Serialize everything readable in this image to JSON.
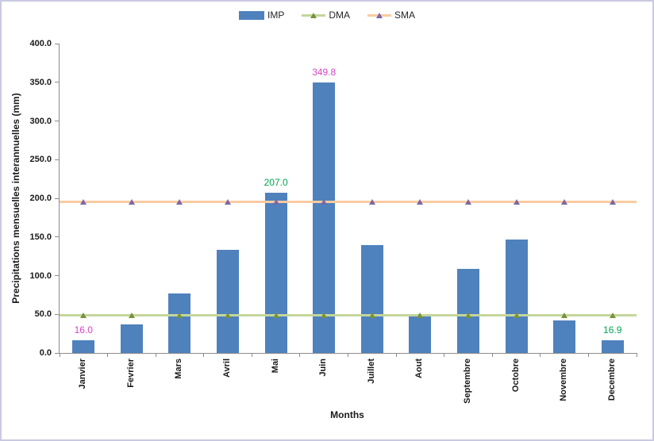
{
  "legend": {
    "items": [
      {
        "label": "IMP",
        "type": "bar"
      },
      {
        "label": "DMA",
        "type": "line"
      },
      {
        "label": "SMA",
        "type": "line"
      }
    ],
    "position": "top-center"
  },
  "chart_data": {
    "type": "bar",
    "title": "",
    "xlabel": "Months",
    "ylabel": "Precipitations mensuelles interannuelles (mm)",
    "categories": [
      "Janvier",
      "Fevrier",
      "Mars",
      "Avril",
      "Mai",
      "Juin",
      "Juillet",
      "Aout",
      "Septembre",
      "Octobre",
      "Novembre",
      "Decembre"
    ],
    "series": [
      {
        "name": "IMP",
        "type": "bar",
        "color": "#4F81BD",
        "values": [
          16.0,
          37,
          77,
          133,
          207.0,
          349.8,
          139,
          47,
          109,
          147,
          42,
          16.9
        ]
      },
      {
        "name": "DMA",
        "type": "line",
        "color": "#C3D69B",
        "marker_color": "#77933C",
        "values": [
          48.5,
          48.5,
          48.5,
          48.5,
          48.5,
          48.5,
          48.5,
          48.5,
          48.5,
          48.5,
          48.5,
          48.5
        ]
      },
      {
        "name": "SMA",
        "type": "line",
        "color": "#FACBA0",
        "marker_color": "#7A68A6",
        "values": [
          195,
          195,
          195,
          195,
          195,
          195,
          195,
          195,
          195,
          195,
          195,
          195
        ]
      }
    ],
    "point_labels": [
      {
        "series": "IMP",
        "index": 0,
        "text": "16.0",
        "color": "#D546C9"
      },
      {
        "series": "IMP",
        "index": 4,
        "text": "207.0",
        "color": "#00A551"
      },
      {
        "series": "IMP",
        "index": 5,
        "text": "349.8",
        "color": "#D546C9"
      },
      {
        "series": "IMP",
        "index": 11,
        "text": "16.9",
        "color": "#00A551"
      }
    ],
    "ylim": [
      0,
      400
    ],
    "ytick_step": 50,
    "ytick_labels": [
      "0.0",
      "50.0",
      "100.0",
      "150.0",
      "200.0",
      "250.0",
      "300.0",
      "350.0",
      "400.0"
    ],
    "grid": false,
    "legend_position": "top"
  },
  "colors": {
    "bar": "#4F81BD",
    "dma_line": "#C3D69B",
    "dma_marker": "#77933C",
    "sma_line": "#FACBA0",
    "sma_marker": "#7A68A6",
    "label_magenta": "#D546C9",
    "label_green": "#00A551",
    "axis": "#8C8C8C",
    "text": "#1A1A1A",
    "frame_border": "#C9C9E1"
  }
}
